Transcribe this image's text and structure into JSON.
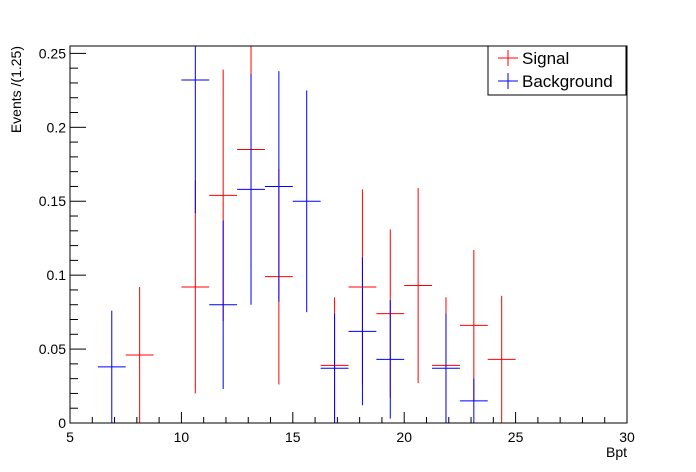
{
  "chart_data": {
    "type": "scatter",
    "title": "",
    "xlabel": "Bpt",
    "ylabel": "Events /(1.25)",
    "xlim": [
      5,
      30
    ],
    "ylim": [
      0,
      0.255
    ],
    "bin_width": 1.25,
    "x_ticks": [
      5,
      10,
      15,
      20,
      25,
      30
    ],
    "x_tick_labels": [
      "5",
      "10",
      "15",
      "20",
      "25",
      "30"
    ],
    "y_ticks": [
      0,
      0.05,
      0.1,
      0.15,
      0.2,
      0.25
    ],
    "y_tick_labels": [
      "0",
      "0.05",
      "0.1",
      "0.15",
      "0.2",
      "0.25"
    ],
    "grid": false,
    "legend": "top-right",
    "series": [
      {
        "name": "Signal",
        "color": "#ff0000",
        "x": [
          8.125,
          10.625,
          11.875,
          13.125,
          14.375,
          16.875,
          18.125,
          19.375,
          20.625,
          21.875,
          23.125,
          24.375
        ],
        "y": [
          0.046,
          0.092,
          0.154,
          0.185,
          0.099,
          0.039,
          0.092,
          0.074,
          0.093,
          0.039,
          0.066,
          0.043
        ],
        "err": [
          0.046,
          0.072,
          0.085,
          0.08,
          0.073,
          0.046,
          0.066,
          0.057,
          0.066,
          0.046,
          0.051,
          0.043
        ]
      },
      {
        "name": "Background",
        "color": "#0000ff",
        "x": [
          6.875,
          10.625,
          11.875,
          13.125,
          14.375,
          15.625,
          16.875,
          18.125,
          19.375,
          21.875,
          23.125,
          24.375
        ],
        "y": [
          0.038,
          0.232,
          0.08,
          0.158,
          0.16,
          0.15,
          0.037,
          0.062,
          0.043,
          0.037,
          0.015,
          0.0
        ],
        "err": [
          0.038,
          0.09,
          0.057,
          0.078,
          0.078,
          0.075,
          0.037,
          0.05,
          0.04,
          0.037,
          0.015,
          0.0
        ]
      }
    ]
  }
}
